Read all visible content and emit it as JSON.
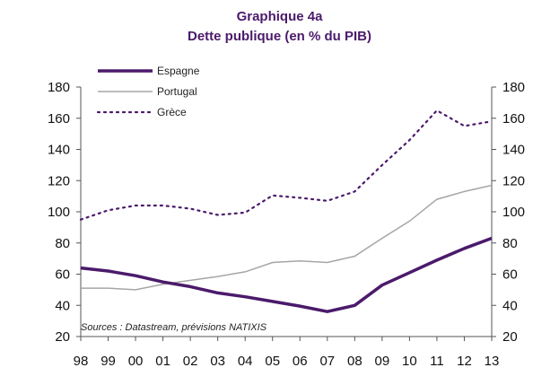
{
  "chart_data": {
    "type": "line",
    "title": "Graphique 4a",
    "subtitle": "Dette publique (en % du PIB)",
    "source": "Sources : Datastream, prévisions NATIXIS",
    "x": [
      "98",
      "99",
      "00",
      "01",
      "02",
      "03",
      "04",
      "05",
      "06",
      "07",
      "08",
      "09",
      "10",
      "11",
      "12",
      "13"
    ],
    "ylim": [
      20,
      180
    ],
    "yticks": [
      20,
      40,
      60,
      80,
      100,
      120,
      140,
      160,
      180
    ],
    "grid": false,
    "legend_position": "top-left",
    "series": [
      {
        "name": "Espagne",
        "color": "#4b1a6b",
        "style": "solid-thick",
        "values": [
          64,
          62,
          59,
          55,
          52,
          48,
          45.5,
          42.5,
          39.5,
          36,
          40,
          53,
          61,
          69,
          76.5,
          83
        ]
      },
      {
        "name": "Portugal",
        "color": "#a6a6a6",
        "style": "solid-thin",
        "values": [
          51,
          51,
          50,
          53.5,
          56,
          58.5,
          61.5,
          67.5,
          68.5,
          67.5,
          71.5,
          83,
          94,
          108,
          113,
          117
        ]
      },
      {
        "name": "Grèce",
        "color": "#4b1a6b",
        "style": "dotted",
        "values": [
          95,
          101,
          104,
          104,
          102,
          98,
          99.5,
          110.5,
          109,
          107,
          113,
          130,
          146,
          165,
          155,
          158
        ]
      }
    ]
  }
}
